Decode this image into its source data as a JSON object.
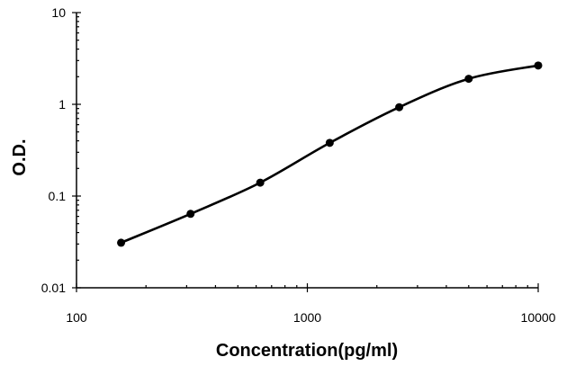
{
  "chart_data": {
    "type": "scatter",
    "xlabel": "Concentration(pg/ml)",
    "ylabel": "O.D.",
    "xscale": "log",
    "yscale": "log",
    "xlim": [
      100,
      10000
    ],
    "ylim": [
      0.01,
      10
    ],
    "xticks": [
      {
        "value": 100,
        "label": "100"
      },
      {
        "value": 1000,
        "label": "1000"
      },
      {
        "value": 10000,
        "label": "10000"
      }
    ],
    "yticks": [
      {
        "value": 0.01,
        "label": "0.01"
      },
      {
        "value": 0.1,
        "label": "0.1"
      },
      {
        "value": 1,
        "label": "1"
      },
      {
        "value": 10,
        "label": "10"
      }
    ],
    "grid": false,
    "legend": "none",
    "series": [
      {
        "x": [
          156,
          312,
          625,
          1250,
          2500,
          5000,
          10000
        ],
        "y": [
          0.031,
          0.064,
          0.14,
          0.38,
          0.93,
          1.9,
          2.65
        ],
        "fit": "smooth"
      }
    ]
  }
}
